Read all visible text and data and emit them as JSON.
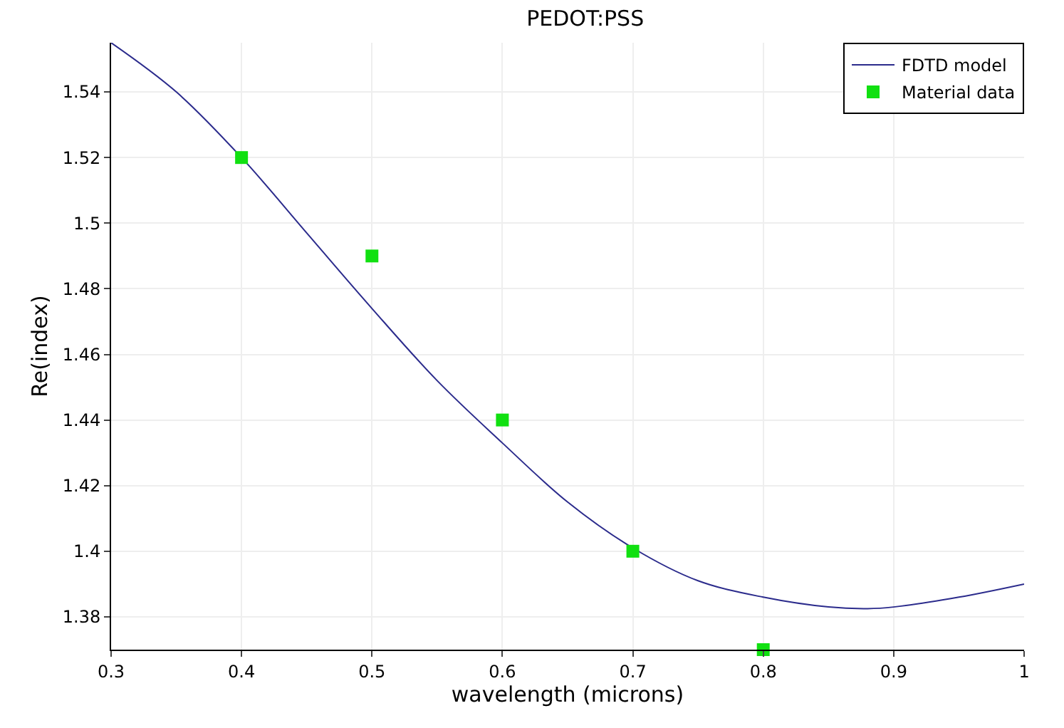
{
  "chart_data": {
    "type": "line",
    "title": "PEDOT:PSS",
    "xlabel": "wavelength (microns)",
    "ylabel": "Re(index)",
    "xlim": [
      0.3,
      1
    ],
    "xticks": [
      0.3,
      0.4,
      0.5,
      0.6,
      0.7,
      0.8,
      0.9,
      1
    ],
    "ylim": [
      1.37,
      1.555
    ],
    "yticks": [
      1.38,
      1.4,
      1.42,
      1.44,
      1.46,
      1.48,
      1.5,
      1.52,
      1.54
    ],
    "grid": true,
    "legend": "top right",
    "series": [
      {
        "name": "FDTD model",
        "color": "#2b2b8c",
        "marker": "none",
        "line_style": "solid",
        "x": [
          0.3,
          0.35,
          0.4,
          0.45,
          0.5,
          0.55,
          0.6,
          0.65,
          0.7,
          0.75,
          0.8,
          0.85,
          0.88,
          0.9,
          0.95,
          1.0
        ],
        "values": [
          1.555,
          1.54,
          1.52,
          1.497,
          1.474,
          1.452,
          1.433,
          1.415,
          1.401,
          1.391,
          1.386,
          1.383,
          1.3825,
          1.383,
          1.386,
          1.39
        ]
      },
      {
        "name": "Material data",
        "type": "scatter",
        "color": "#11e011",
        "marker": "square",
        "x": [
          0.4,
          0.5,
          0.6,
          0.7,
          0.8
        ],
        "values": [
          1.52,
          1.49,
          1.44,
          1.4,
          1.37
        ]
      }
    ]
  }
}
